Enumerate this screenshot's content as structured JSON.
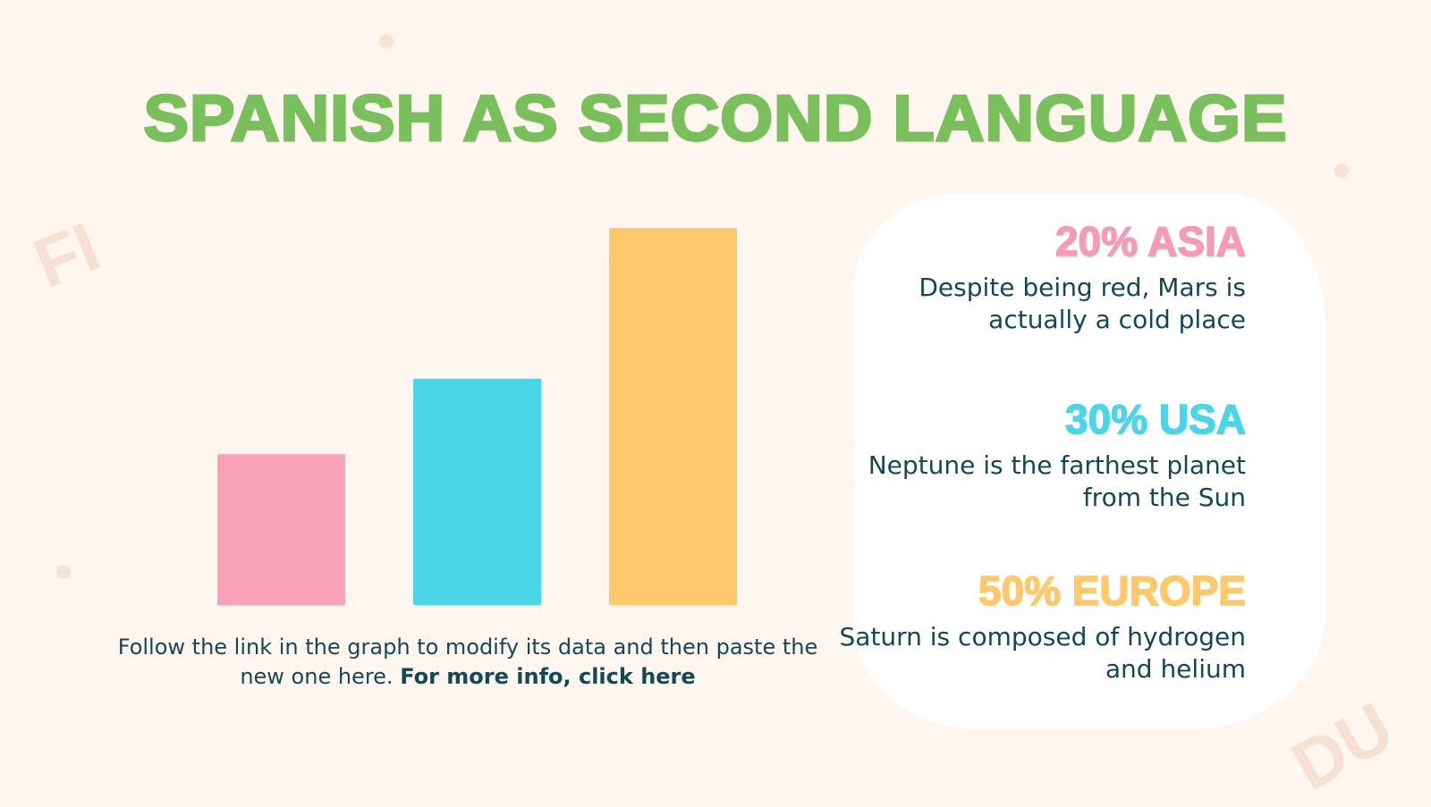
{
  "title": "SPANISH AS SECOND LANGUAGE",
  "decorations": {
    "left_letters": "FI",
    "right_letters": "DU"
  },
  "caption": {
    "text": "Follow the link in the graph to modify its data and then paste the new one here.",
    "link": "For more info, click here"
  },
  "chart_data": {
    "type": "bar",
    "categories": [
      "Asia",
      "USA",
      "Europe"
    ],
    "values": [
      20,
      30,
      50
    ],
    "colors": [
      "#fba0ba",
      "#4ad6e6",
      "#ffc96b"
    ],
    "ylim": [
      0,
      50
    ],
    "grid": false,
    "axes_visible": false
  },
  "stats": [
    {
      "heading": "20% ASIA",
      "text": "Despite being red, Mars is actually a cold place",
      "color": "#f79ab5"
    },
    {
      "heading": "30% USA",
      "text": "Neptune is the farthest planet from the Sun",
      "color": "#4ad6e6"
    },
    {
      "heading": "50% EUROPE",
      "text": "Saturn is composed of hydrogen and helium",
      "color": "#ffc96b"
    }
  ]
}
